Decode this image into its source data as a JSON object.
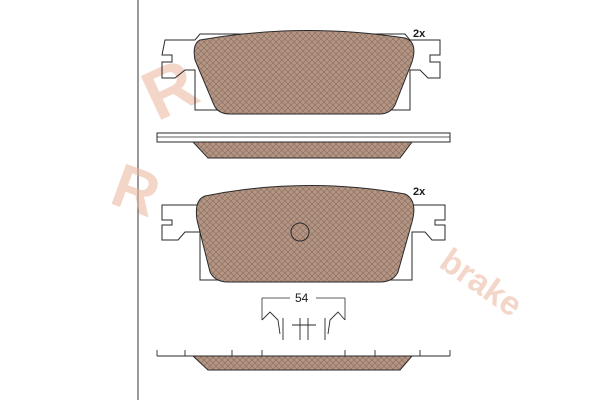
{
  "labels": {
    "qty_top": "2x",
    "qty_bottom": "2x",
    "dimension": "54"
  },
  "colors": {
    "pad_fill": "#b89a8a",
    "outline": "#2a2a2a",
    "watermark": "#e8b8a0",
    "background": "#ffffff"
  }
}
